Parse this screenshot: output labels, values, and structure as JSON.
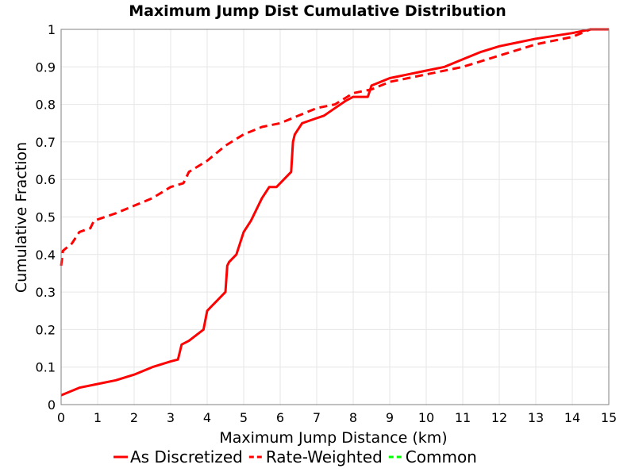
{
  "chart_data": {
    "type": "line",
    "title": "Maximum Jump Dist Cumulative Distribution",
    "xlabel": "Maximum Jump Distance (km)",
    "ylabel": "Cumulative Fraction",
    "xlim": [
      0,
      15
    ],
    "ylim": [
      0,
      1
    ],
    "xticks": [
      "0",
      "1",
      "2",
      "3",
      "4",
      "5",
      "6",
      "7",
      "8",
      "9",
      "10",
      "11",
      "12",
      "13",
      "14",
      "15"
    ],
    "yticks": [
      "0",
      "0.1",
      "0.2",
      "0.3",
      "0.4",
      "0.5",
      "0.6",
      "0.7",
      "0.8",
      "0.9",
      "1"
    ],
    "grid": true,
    "legend_position": "bottom",
    "series": [
      {
        "name": "As Discretized",
        "color": "#ff0000",
        "style": "solid",
        "x": [
          0,
          0.5,
          1,
          1.5,
          2,
          2.5,
          3,
          3.2,
          3.3,
          3.5,
          3.9,
          4.0,
          4.1,
          4.3,
          4.5,
          4.55,
          4.6,
          4.8,
          5.0,
          5.2,
          5.5,
          5.7,
          5.9,
          6.1,
          6.3,
          6.35,
          6.4,
          6.6,
          6.9,
          7.2,
          7.5,
          7.8,
          8.0,
          8.4,
          8.5,
          9.0,
          10.0,
          10.5,
          11.0,
          11.5,
          12,
          13,
          14,
          14.5,
          15
        ],
        "y": [
          0.025,
          0.045,
          0.055,
          0.065,
          0.08,
          0.1,
          0.115,
          0.12,
          0.16,
          0.17,
          0.2,
          0.25,
          0.26,
          0.28,
          0.3,
          0.37,
          0.38,
          0.4,
          0.46,
          0.49,
          0.55,
          0.58,
          0.58,
          0.6,
          0.62,
          0.7,
          0.72,
          0.75,
          0.76,
          0.77,
          0.79,
          0.81,
          0.82,
          0.82,
          0.85,
          0.87,
          0.89,
          0.9,
          0.92,
          0.94,
          0.955,
          0.975,
          0.99,
          1.0,
          1.0
        ]
      },
      {
        "name": "Rate-Weighted",
        "color": "#ff0000",
        "style": "dashed",
        "x": [
          0,
          0.05,
          0.3,
          0.5,
          0.8,
          0.9,
          1.5,
          2.0,
          2.5,
          3.0,
          3.35,
          3.5,
          4.0,
          4.5,
          5.0,
          5.5,
          6.0,
          6.5,
          7.0,
          7.5,
          8.0,
          8.5,
          9.0,
          10.0,
          11.0,
          12.0,
          13.0,
          14.0,
          14.5,
          15
        ],
        "y": [
          0.37,
          0.41,
          0.43,
          0.46,
          0.47,
          0.49,
          0.51,
          0.53,
          0.55,
          0.58,
          0.59,
          0.62,
          0.65,
          0.69,
          0.72,
          0.74,
          0.75,
          0.77,
          0.79,
          0.8,
          0.83,
          0.84,
          0.86,
          0.88,
          0.9,
          0.93,
          0.96,
          0.98,
          1.0,
          1.0
        ]
      },
      {
        "name": "Common",
        "color": "#00ff00",
        "style": "dashed",
        "x": [],
        "y": []
      }
    ]
  }
}
